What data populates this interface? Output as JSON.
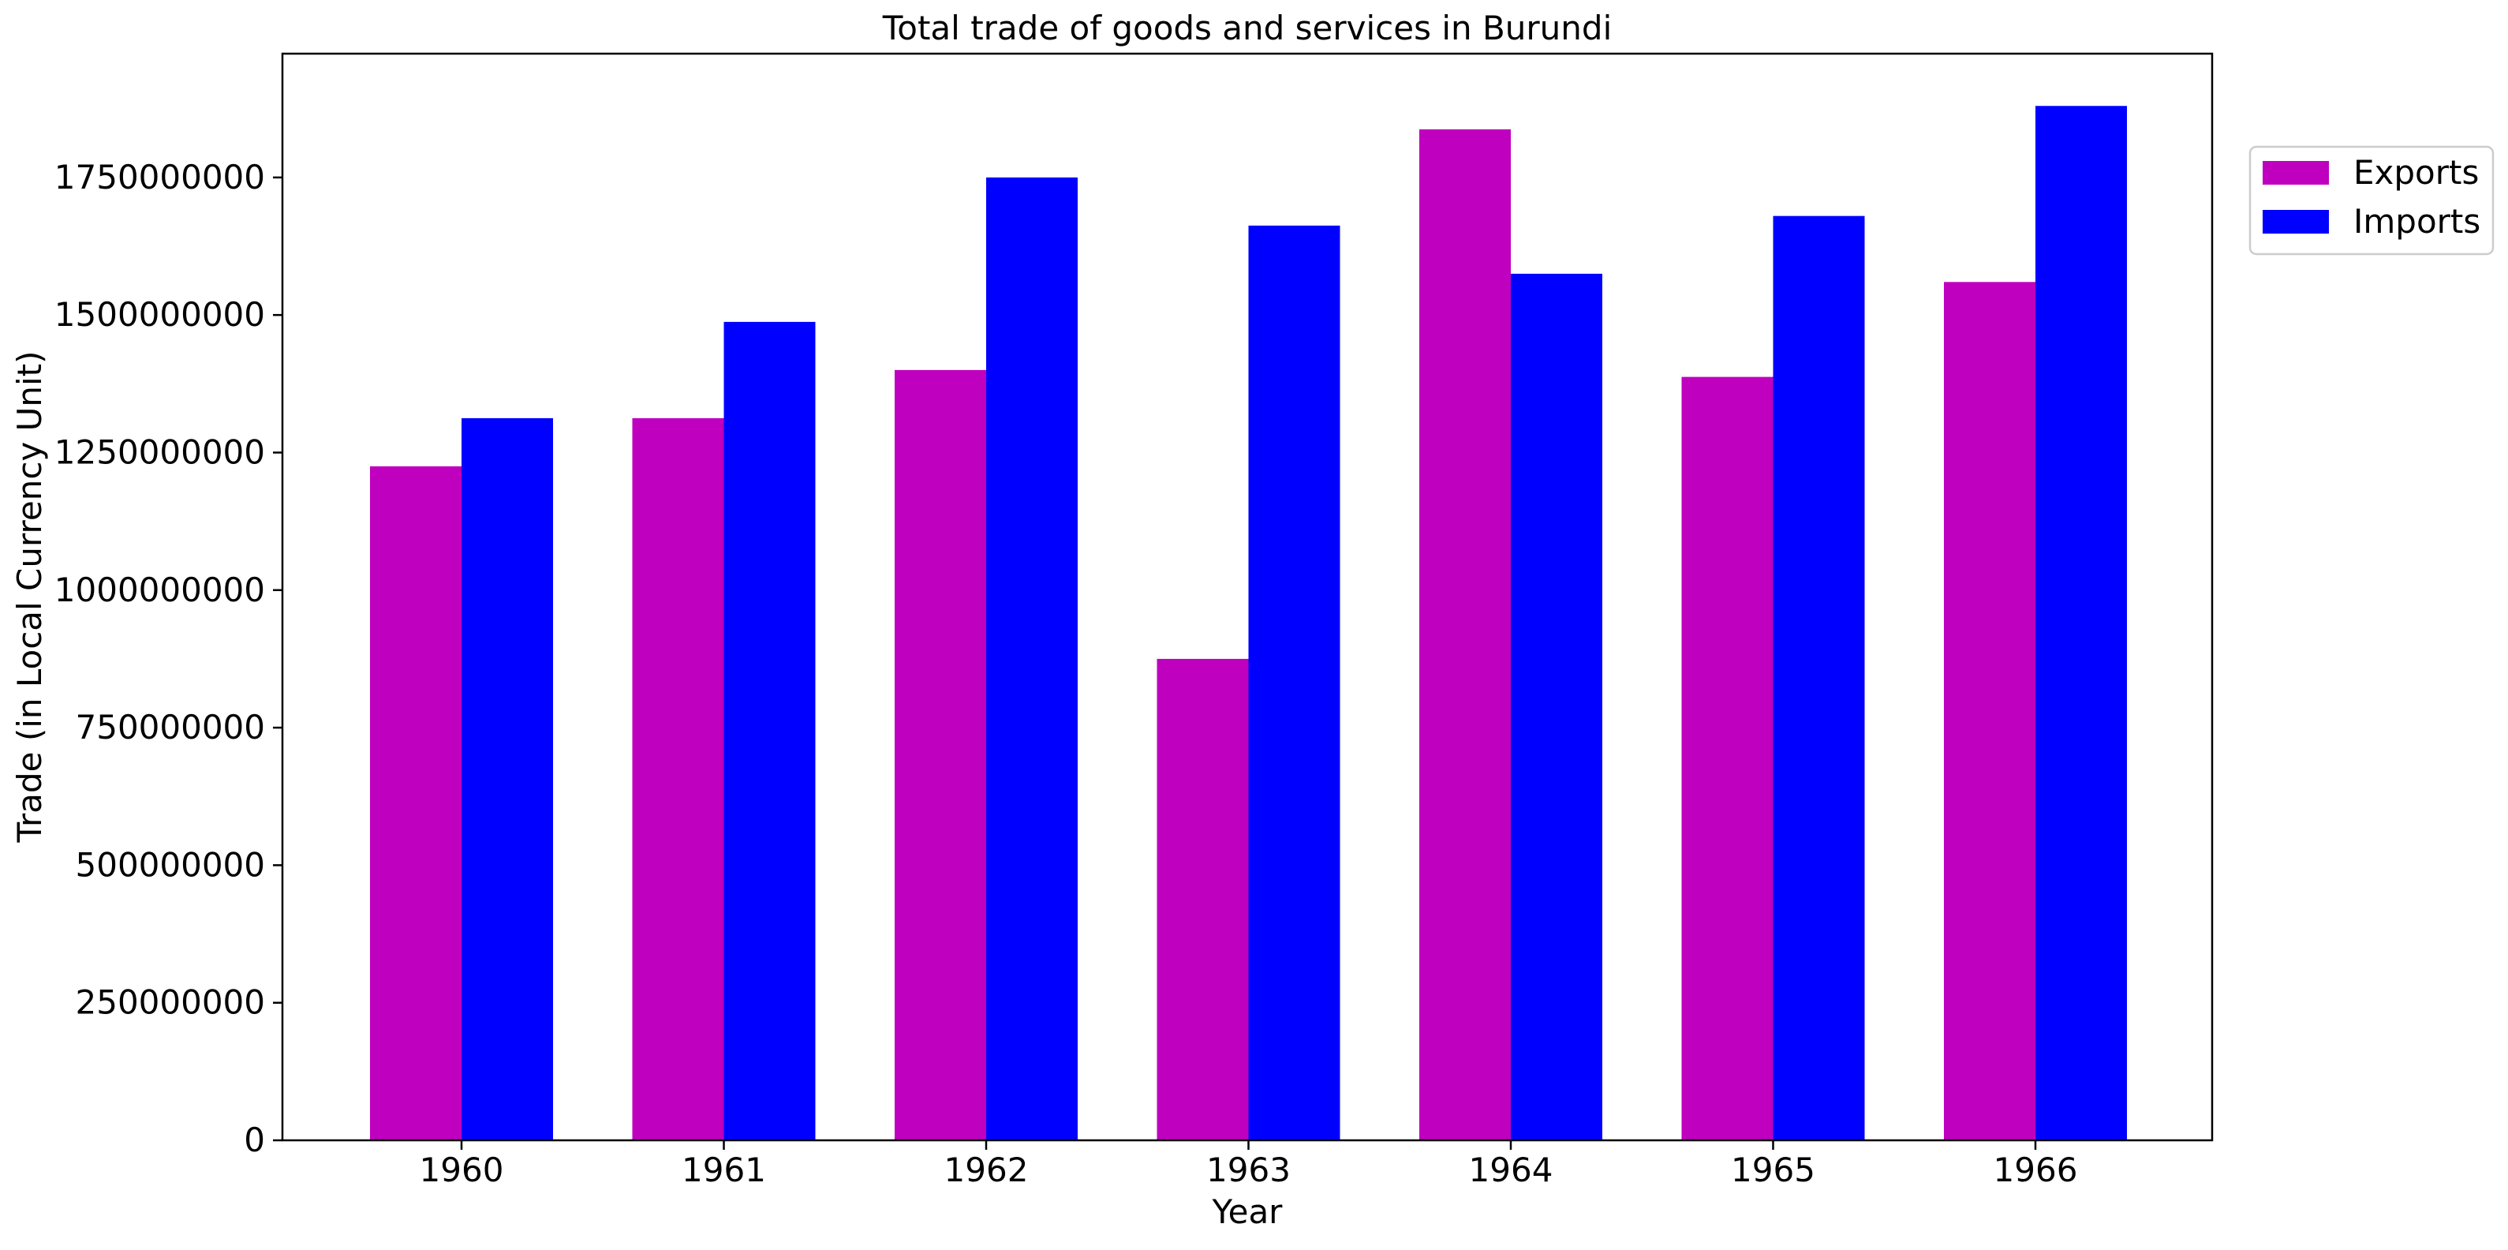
{
  "chart_data": {
    "type": "bar",
    "title": "Total trade of goods and services in Burundi",
    "xlabel": "Year",
    "ylabel": "Trade (in Local Currency Unit)",
    "categories": [
      "1960",
      "1961",
      "1962",
      "1963",
      "1964",
      "1965",
      "1966"
    ],
    "series": [
      {
        "name": "Exports",
        "color": "#bf00bf",
        "values": [
          1225000000,
          1312500000,
          1400000000,
          875000000,
          1837500000,
          1387500000,
          1560000000
        ]
      },
      {
        "name": "Imports",
        "color": "#0000ff",
        "values": [
          1312500000,
          1487500000,
          1750000000,
          1662500000,
          1575000000,
          1680000000,
          1880000000
        ]
      }
    ],
    "ylim": [
      0,
      1975000000
    ],
    "yticks": [
      0,
      250000000,
      500000000,
      750000000,
      1000000000,
      1250000000,
      1500000000,
      1750000000
    ],
    "ytick_labels": [
      "0",
      "250000000",
      "500000000",
      "750000000",
      "1000000000",
      "1250000000",
      "1500000000",
      "1750000000"
    ],
    "grid": false,
    "legend_position": "top-right, outside plot area"
  }
}
